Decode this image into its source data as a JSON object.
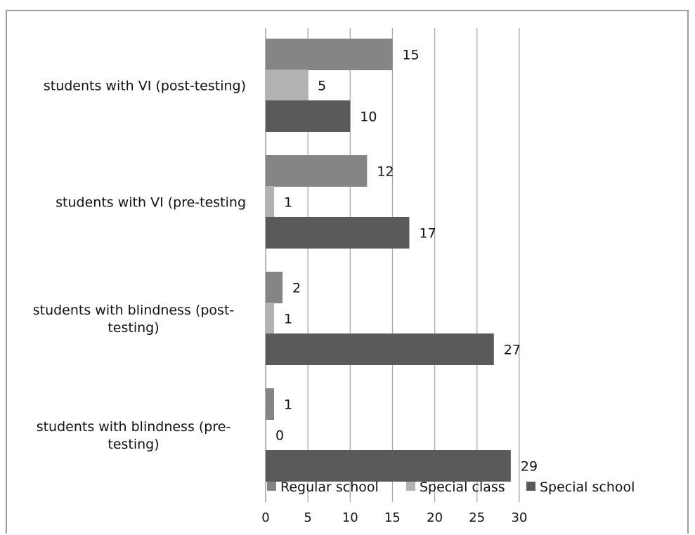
{
  "chart_data": {
    "type": "bar",
    "orientation": "horizontal",
    "title": "",
    "xlabel": "",
    "ylabel": "",
    "xlim": [
      0,
      30
    ],
    "x_ticks": [
      0,
      5,
      10,
      15,
      20,
      25,
      30
    ],
    "grid": "vertical",
    "legend_position": "bottom",
    "categories": [
      {
        "lines": [
          "students with VI (post-testing)"
        ]
      },
      {
        "lines": [
          "students with VI (pre-testing"
        ]
      },
      {
        "lines": [
          "students with blindness (post-",
          "testing)"
        ]
      },
      {
        "lines": [
          "students with blindness (pre-",
          "testing)"
        ]
      }
    ],
    "series": [
      {
        "name": "Regular school",
        "color": "#858585",
        "values": [
          15,
          12,
          2,
          1
        ]
      },
      {
        "name": "Special class",
        "color": "#b2b2b2",
        "values": [
          5,
          1,
          1,
          0
        ]
      },
      {
        "name": "Special school",
        "color": "#5a5a5a",
        "values": [
          10,
          17,
          27,
          29
        ]
      }
    ]
  }
}
